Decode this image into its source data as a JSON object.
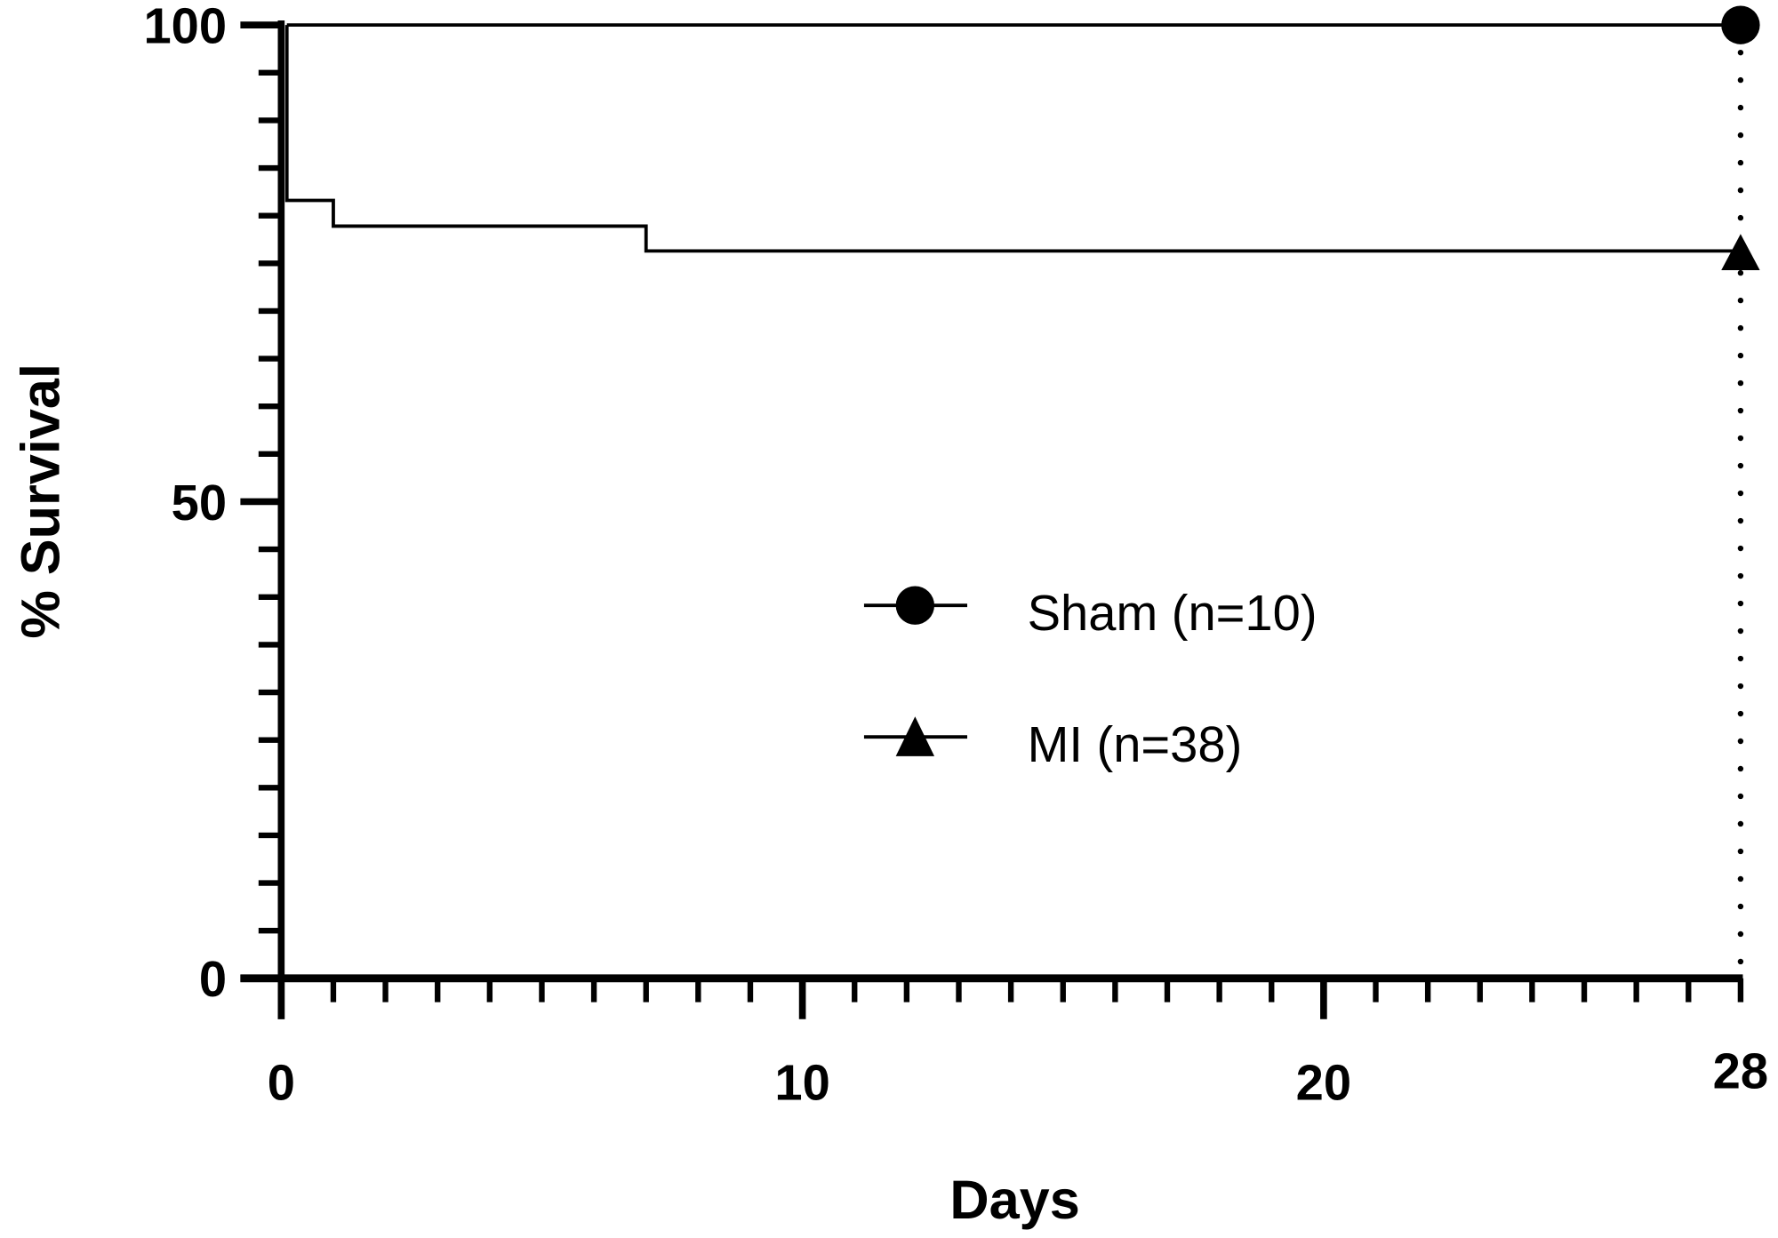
{
  "chart_data": {
    "type": "line",
    "subtype": "kaplan-meier step survival curve",
    "xlabel": "Days",
    "ylabel": "% Survival",
    "xlim": [
      0,
      28
    ],
    "ylim": [
      0,
      100
    ],
    "x_ticks": [
      0,
      10,
      20,
      28
    ],
    "y_ticks": [
      0,
      50,
      100
    ],
    "grid": false,
    "legend_position": "center-right",
    "series": [
      {
        "name": "Sham (n=10)",
        "marker": "circle",
        "color": "#000000",
        "steps": [
          {
            "x": 0,
            "y": 100
          },
          {
            "x": 28,
            "y": 100
          }
        ]
      },
      {
        "name": "MI (n=38)",
        "marker": "triangle",
        "color": "#000000",
        "steps": [
          {
            "x": 0,
            "y": 100
          },
          {
            "x": 0,
            "y": 81.6
          },
          {
            "x": 1,
            "y": 78.9
          },
          {
            "x": 7,
            "y": 76.3
          },
          {
            "x": 28,
            "y": 76.3
          }
        ]
      }
    ],
    "annotations": [
      "dotted vertical line at day 28"
    ]
  }
}
